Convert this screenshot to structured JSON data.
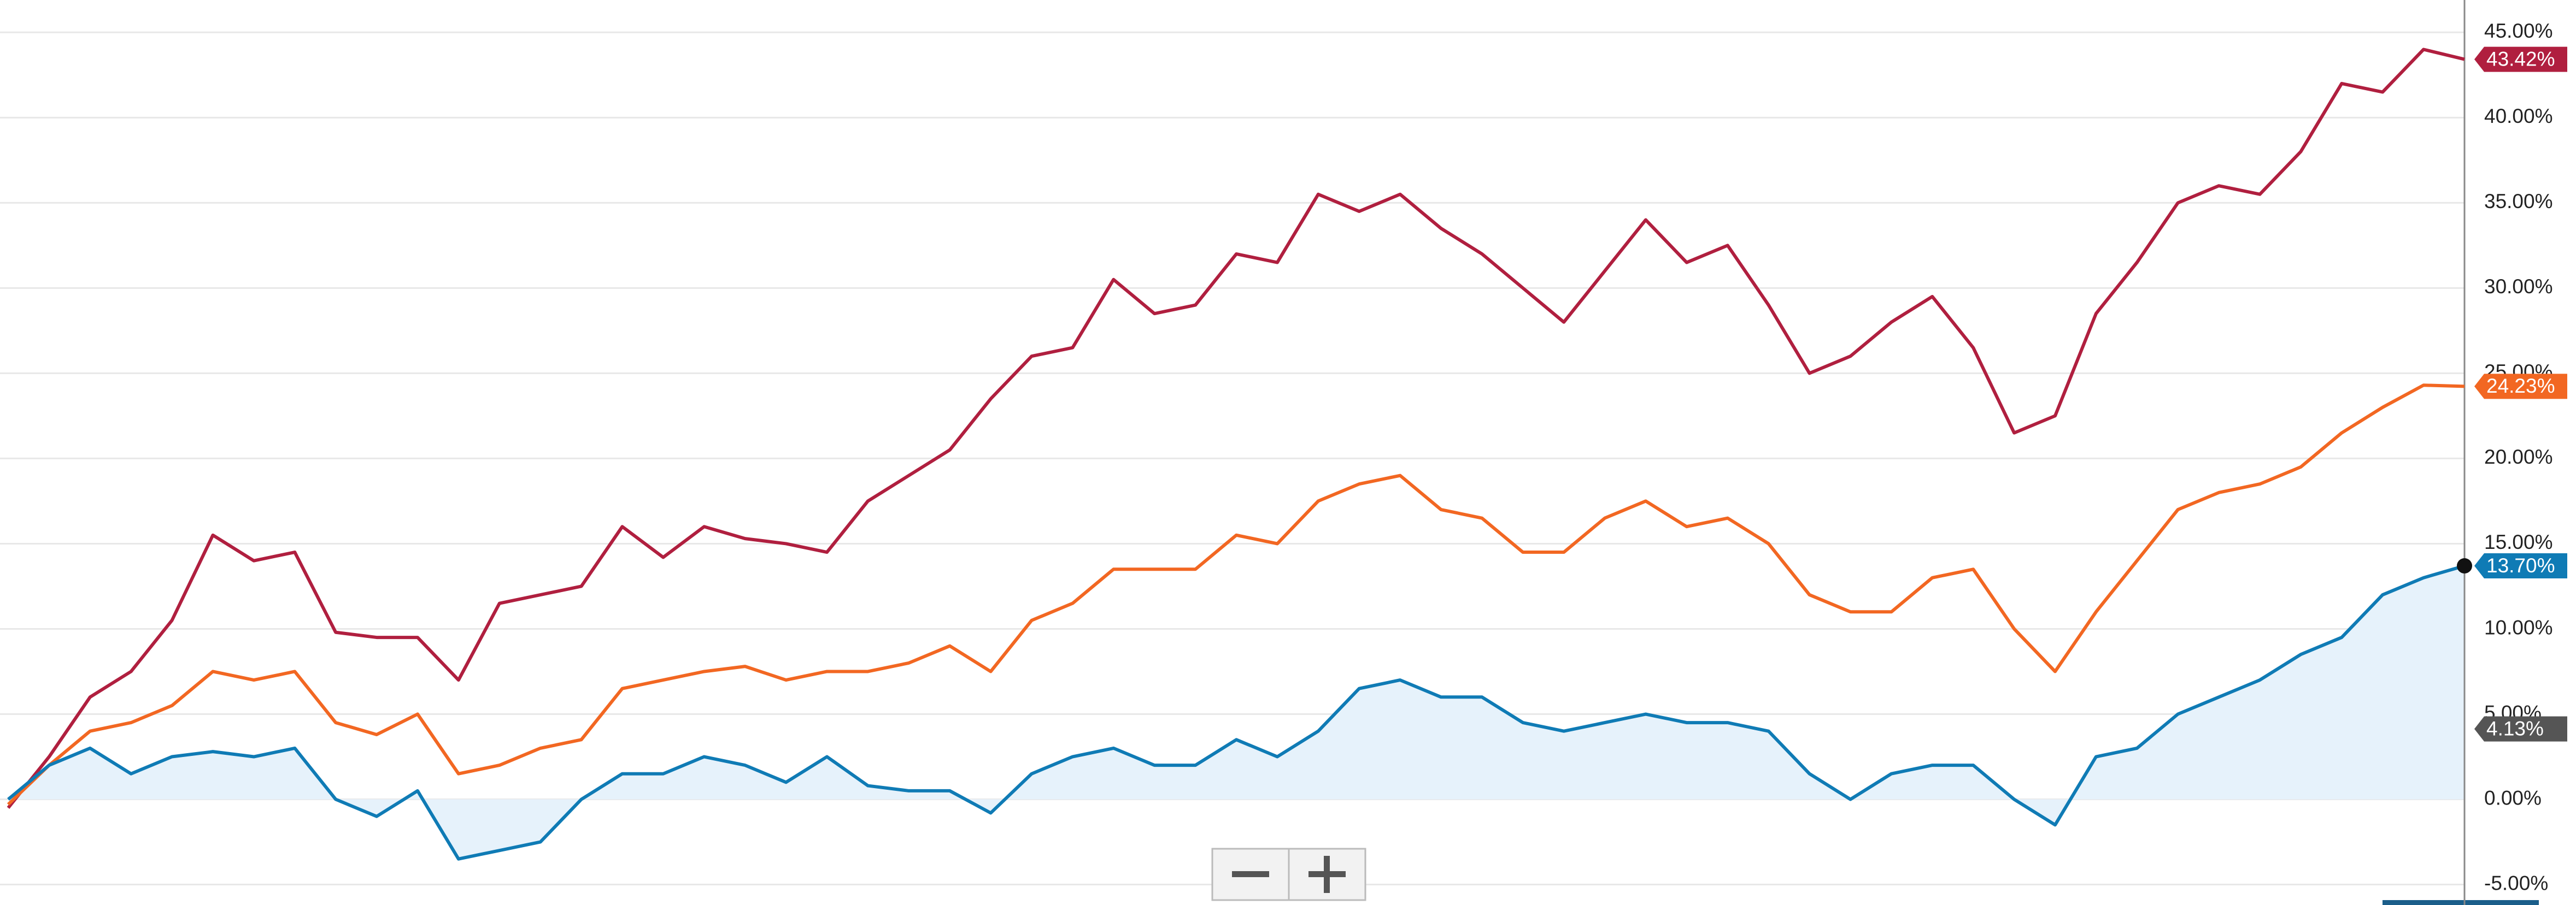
{
  "chart_data": {
    "type": "line",
    "series": [
      {
        "color": "#b01f3f",
        "values": [
          -0.5,
          2.5,
          6,
          7.5,
          10.5,
          15.5,
          14,
          14.5,
          9.8,
          9.5,
          9.5,
          7,
          11.5,
          12,
          12.5,
          16,
          14.2,
          16,
          15.3,
          15,
          14.5,
          17.5,
          19,
          20.5,
          23.5,
          26,
          26.5,
          30.5,
          28.5,
          29,
          32,
          31.5,
          35.5,
          34.5,
          35.5,
          33.5,
          32,
          30,
          28,
          31,
          34,
          31.5,
          32.5,
          29,
          25,
          26,
          28,
          29.5,
          26.5,
          21.5,
          22.5,
          28.5,
          31.5,
          35,
          36,
          35.5,
          38,
          42,
          41.5,
          44,
          43.42
        ],
        "value_labels": [
          null,
          null,
          null,
          null,
          null,
          null,
          null,
          null,
          null,
          null,
          null,
          null,
          null,
          null,
          null,
          null,
          null,
          null,
          null,
          null,
          null,
          null,
          null,
          null,
          null,
          null,
          null,
          null,
          null,
          null,
          null,
          null,
          null,
          null,
          null,
          null,
          null,
          null,
          null,
          null,
          null,
          null,
          null,
          null,
          null,
          null,
          null,
          null,
          null,
          null,
          null,
          null,
          null,
          null,
          null,
          null,
          null,
          null,
          null,
          null,
          "43.42%"
        ]
      },
      {
        "color": "#f26722",
        "values": [
          -0.3,
          2,
          4,
          4.5,
          5.5,
          7.5,
          7,
          7.5,
          4.5,
          3.8,
          5,
          1.5,
          2,
          3,
          3.5,
          6.5,
          7,
          7.5,
          7.8,
          7,
          7.5,
          7.5,
          8,
          9,
          7.5,
          10.5,
          11.5,
          13.5,
          13.5,
          13.5,
          15.5,
          15,
          17.5,
          18.5,
          19,
          17,
          16.5,
          14.5,
          14.5,
          16.5,
          17.5,
          16,
          16.5,
          15,
          12,
          11,
          11,
          13,
          13.5,
          10,
          7.5,
          11,
          14,
          17,
          18,
          18.5,
          19.5,
          21.5,
          23,
          24.3,
          24.23
        ],
        "value_labels": [
          null,
          null,
          null,
          null,
          null,
          null,
          null,
          null,
          null,
          null,
          null,
          null,
          null,
          null,
          null,
          null,
          null,
          null,
          null,
          null,
          null,
          null,
          null,
          null,
          null,
          null,
          null,
          null,
          null,
          null,
          null,
          null,
          null,
          null,
          null,
          null,
          null,
          null,
          null,
          null,
          null,
          null,
          null,
          null,
          null,
          null,
          null,
          null,
          null,
          null,
          null,
          null,
          null,
          null,
          null,
          null,
          null,
          null,
          null,
          null,
          "24.23%"
        ]
      },
      {
        "color": "#0f7bb5",
        "area": true,
        "values": [
          0,
          2,
          3,
          1.5,
          2.5,
          2.8,
          2.5,
          3,
          0,
          -1,
          0.5,
          -3.5,
          -3,
          -2.5,
          0,
          1.5,
          1.5,
          2.5,
          2,
          1,
          2.5,
          0.8,
          0.5,
          0.5,
          -0.8,
          1.5,
          2.5,
          3,
          2,
          2,
          3.5,
          2.5,
          4,
          6.5,
          7,
          6,
          6,
          4.5,
          4,
          4.5,
          5,
          4.5,
          4.5,
          4,
          1.5,
          0,
          1.5,
          2,
          2,
          0,
          -1.5,
          2.5,
          3,
          5,
          6,
          7,
          8.5,
          9.5,
          12,
          13,
          13.7
        ],
        "value_labels": [
          null,
          null,
          null,
          null,
          null,
          null,
          null,
          null,
          null,
          null,
          null,
          null,
          null,
          null,
          null,
          null,
          null,
          null,
          null,
          null,
          null,
          null,
          null,
          null,
          null,
          null,
          null,
          null,
          null,
          null,
          null,
          null,
          null,
          null,
          null,
          null,
          null,
          null,
          null,
          null,
          null,
          null,
          null,
          null,
          null,
          null,
          null,
          null,
          null,
          null,
          null,
          null,
          null,
          null,
          null,
          null,
          null,
          null,
          null,
          null,
          "13.70%"
        ]
      }
    ],
    "annotation": {
      "value": 4.13,
      "label": "4.13%",
      "color": "#555555"
    },
    "ylim": [
      -6.2,
      46.9
    ],
    "yticks": [
      {
        "value": -5,
        "label": "-5.00%"
      },
      {
        "value": 0,
        "label": "0.00%"
      },
      {
        "value": 5,
        "label": "5.00%"
      },
      {
        "value": 10,
        "label": "10.00%"
      },
      {
        "value": 15,
        "label": "15.00%"
      },
      {
        "value": 20,
        "label": "20.00%"
      },
      {
        "value": 25,
        "label": "25.00%"
      },
      {
        "value": 30,
        "label": "30.00%"
      },
      {
        "value": 35,
        "label": "35.00%"
      },
      {
        "value": 40,
        "label": "40.00%"
      },
      {
        "value": 45,
        "label": "45.00%"
      }
    ],
    "grid": true
  }
}
